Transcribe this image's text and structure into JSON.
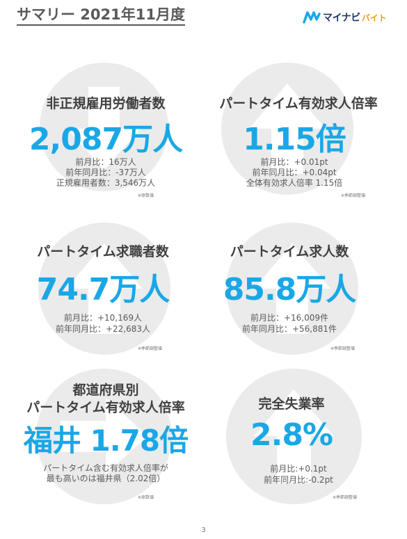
{
  "title": "サマリー 2021年11月度",
  "logo": {
    "main": "マイナビ",
    "sub": "バイト"
  },
  "cards": [
    {
      "label": "非正規雇用労働者数",
      "value": "2,087万人",
      "sub": [
        "前月比：16万人",
        "前年同月比：-37万人",
        "正規雇用者数：3,546万人"
      ],
      "note": "※原数値",
      "arrow": "arrow-down-icon"
    },
    {
      "label": "パートタイム有効求人倍率",
      "value": "1.15倍",
      "sub": [
        "前月比：+0.01pt",
        "前年同月比：+0.04pt",
        "全体有効求人倍率 1.15倍"
      ],
      "note": "※季節調整値",
      "arrow": "arrow-up-icon"
    },
    {
      "label": "パートタイム求職者数",
      "value": "74.7万人",
      "sub": [
        "前月比：+10,169人",
        "前年同月比：+22,683人"
      ],
      "note": "※季節調整値",
      "arrow": "arrow-up-icon"
    },
    {
      "label": "パートタイム求人数",
      "value": "85.8万人",
      "sub": [
        "前月比：+16,009件",
        "前年同月比：+56,881件"
      ],
      "note": "※季節調整値",
      "arrow": "arrow-up-icon"
    },
    {
      "label_line1": "都道府県別",
      "label_line2": "パートタイム有効求人倍率",
      "value": "福井 1.78倍",
      "sub": [
        "パートタイム含む有効求人倍率が",
        "最も高いのは福井県（2.02倍）"
      ],
      "note": "※原数値",
      "arrow": "arrow-right-icon"
    },
    {
      "label": "完全失業率",
      "value": "2.8%",
      "sub": [
        "前月比:+0.1pt",
        "前年同月比:-0.2pt"
      ],
      "note": "※季節調整値",
      "arrow": "arrow-up-icon"
    }
  ],
  "page_number": "3",
  "colors": {
    "accent": "#1aa7e6",
    "heading": "#404040",
    "circle": "#ebebeb",
    "arrow": "#ffffff"
  }
}
